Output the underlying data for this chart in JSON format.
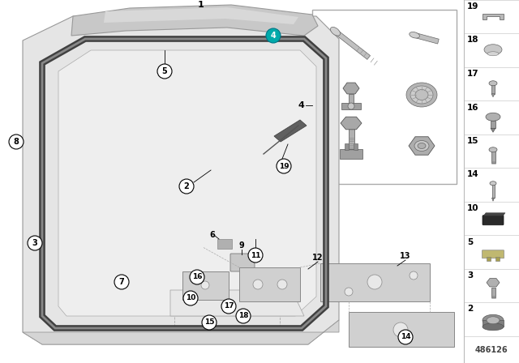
{
  "background_color": "#ffffff",
  "diagram_ref": "486126",
  "sidebar_items": [
    19,
    18,
    17,
    16,
    15,
    14,
    10,
    5,
    3,
    2
  ],
  "callout_4_fill": "#00aaaa",
  "callout_4_edge": "#007788",
  "callout_4_text": "#ffffff"
}
